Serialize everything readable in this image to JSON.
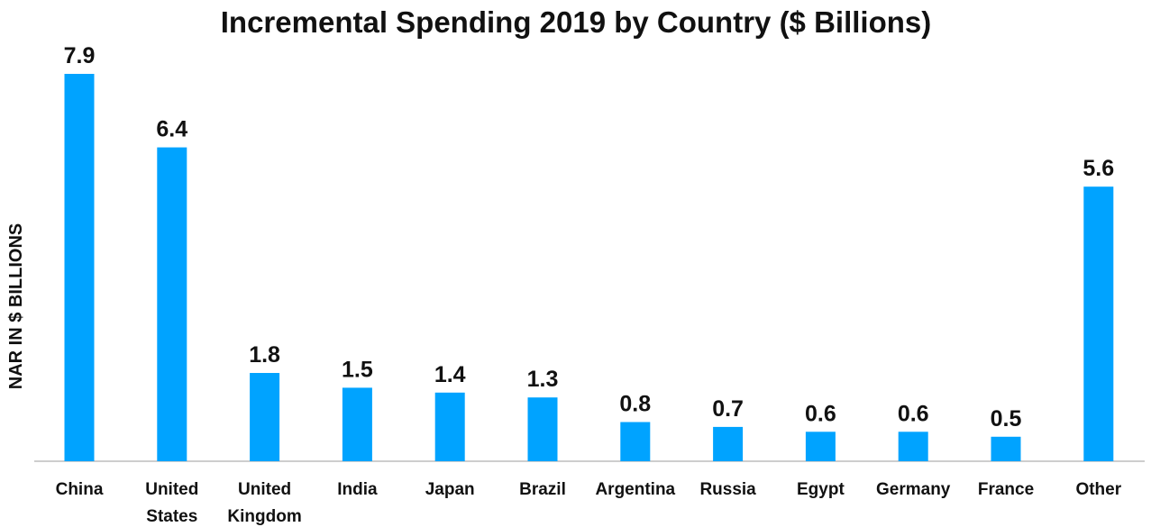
{
  "chart_data": {
    "type": "bar",
    "title": "Incremental Spending 2019 by Country ($ Billions)",
    "xlabel": "",
    "ylabel": "NAR IN $ BILLIONS",
    "ylim": [
      0,
      8.5
    ],
    "grid": false,
    "legend": "none",
    "categories": [
      [
        "China"
      ],
      [
        "United",
        "States"
      ],
      [
        "United",
        "Kingdom"
      ],
      [
        "India"
      ],
      [
        "Japan"
      ],
      [
        "Brazil"
      ],
      [
        "Argentina"
      ],
      [
        "Russia"
      ],
      [
        "Egypt"
      ],
      [
        "Germany"
      ],
      [
        "France"
      ],
      [
        "Other"
      ]
    ],
    "values": [
      7.9,
      6.4,
      1.8,
      1.5,
      1.4,
      1.3,
      0.8,
      0.7,
      0.6,
      0.6,
      0.5,
      5.6
    ],
    "value_labels": [
      "7.9",
      "6.4",
      "1.8",
      "1.5",
      "1.4",
      "1.3",
      "0.8",
      "0.7",
      "0.6",
      "0.6",
      "0.5",
      "5.6"
    ],
    "colors": {
      "bar": "#00a3ff",
      "text": "#111111",
      "axis": "#bdbdbd"
    }
  }
}
